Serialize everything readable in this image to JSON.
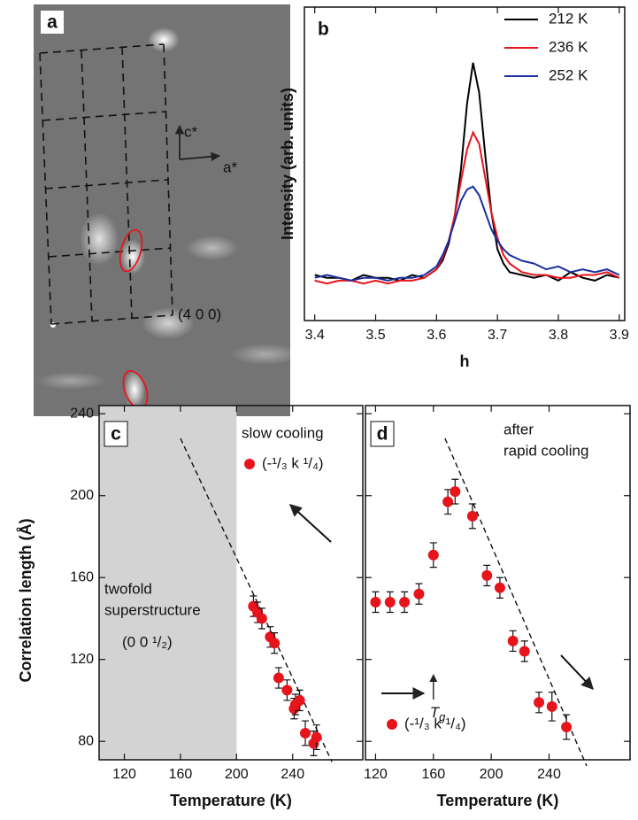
{
  "panel_a": {
    "label": "a",
    "c_axis": "c*",
    "a_axis": "a*",
    "reflection": "(4 0 0)"
  },
  "chart_data": [
    {
      "type": "line",
      "label": "b",
      "xlabel": "h",
      "ylabel": "Intensity (arb. units)",
      "x": [
        3.4,
        3.42,
        3.44,
        3.46,
        3.48,
        3.5,
        3.52,
        3.54,
        3.56,
        3.58,
        3.6,
        3.61,
        3.62,
        3.63,
        3.64,
        3.65,
        3.66,
        3.67,
        3.68,
        3.69,
        3.7,
        3.71,
        3.72,
        3.74,
        3.76,
        3.78,
        3.8,
        3.82,
        3.84,
        3.86,
        3.88,
        3.9
      ],
      "xlim": [
        3.383,
        3.909
      ],
      "xticks": [
        3.4,
        3.5,
        3.6,
        3.7,
        3.8,
        3.9
      ],
      "ylim": [
        0,
        11
      ],
      "legend": "top-right",
      "series": [
        {
          "name": "212 K",
          "color": "#000000",
          "values": [
            1.6,
            1.5,
            1.5,
            1.4,
            1.6,
            1.5,
            1.5,
            1.4,
            1.6,
            1.5,
            1.8,
            2.1,
            2.7,
            3.7,
            5.3,
            7.6,
            9.05,
            8.0,
            5.8,
            3.8,
            2.5,
            2.0,
            1.7,
            1.6,
            1.5,
            1.6,
            1.4,
            1.7,
            1.5,
            1.4,
            1.6,
            1.5
          ]
        },
        {
          "name": "236 K",
          "color": "#e8141c",
          "values": [
            1.4,
            1.3,
            1.4,
            1.4,
            1.3,
            1.4,
            1.3,
            1.4,
            1.4,
            1.5,
            1.8,
            2.2,
            2.8,
            3.7,
            4.9,
            6.0,
            6.6,
            6.2,
            5.0,
            3.8,
            2.9,
            2.3,
            2.0,
            1.7,
            1.6,
            1.6,
            1.5,
            1.5,
            1.6,
            1.6,
            1.7,
            1.5
          ]
        },
        {
          "name": "252 K",
          "color": "#1a2fa0",
          "values": [
            1.5,
            1.6,
            1.5,
            1.4,
            1.5,
            1.5,
            1.4,
            1.5,
            1.5,
            1.6,
            1.9,
            2.3,
            2.8,
            3.5,
            4.2,
            4.6,
            4.7,
            4.4,
            3.8,
            3.2,
            2.8,
            2.5,
            2.3,
            2.1,
            2.0,
            1.8,
            1.9,
            1.7,
            1.8,
            1.7,
            1.8,
            1.6
          ]
        }
      ]
    },
    {
      "type": "scatter",
      "label": "c",
      "title": "slow cooling",
      "xlabel": "Temperature (K)",
      "ylabel": "Correlation length (Å)",
      "xlim": [
        102,
        290
      ],
      "xticks": [
        120,
        160,
        200,
        240
      ],
      "ylim": [
        71,
        244
      ],
      "yticks": [
        80,
        120,
        160,
        200,
        240
      ],
      "shade_below_x": 200,
      "shade_color": "#d3d3d3",
      "annotation_lines": [
        "twofold",
        "superstructure"
      ],
      "annotation_index": "(0 0 ¹/₂)",
      "guide_line": {
        "x": [
          160,
          268
        ],
        "y": [
          228,
          70
        ]
      },
      "x": [
        212,
        215,
        218,
        224,
        227,
        230,
        236,
        241,
        242,
        245,
        249,
        255,
        257
      ],
      "series": [
        {
          "name": "(-¹/₃ k ¹/₄)",
          "color": "#e8141c",
          "values": [
            146,
            143,
            140,
            131,
            128,
            111,
            105,
            96,
            98,
            100,
            84,
            79,
            82
          ],
          "errors": [
            5,
            5,
            5,
            5,
            5,
            5,
            5,
            5,
            5,
            5,
            6,
            6,
            6
          ]
        }
      ]
    },
    {
      "type": "scatter",
      "label": "d",
      "title_lines": [
        "after",
        "rapid cooling"
      ],
      "xlabel": "Temperature (K)",
      "xlim": [
        113,
        296
      ],
      "xticks": [
        120,
        160,
        200,
        240
      ],
      "transition_x": 160,
      "transition": {
        "symbol": "T",
        "subscript": "g"
      },
      "guide_line": {
        "x": [
          168,
          266
        ],
        "y": [
          228,
          68
        ]
      },
      "x": [
        120,
        130,
        140,
        150,
        160,
        170,
        175,
        187,
        197,
        206,
        215,
        223,
        233,
        242,
        252
      ],
      "series": [
        {
          "name": "(-¹/₃ k ¹/₄)",
          "color": "#e8141c",
          "values": [
            148,
            148,
            148,
            152,
            171,
            197,
            202,
            190,
            161,
            155,
            129,
            124,
            99,
            97,
            87
          ],
          "errors": [
            5,
            5,
            5,
            5,
            6,
            6,
            6,
            6,
            5,
            5,
            5,
            5,
            5,
            7,
            6
          ]
        }
      ]
    }
  ]
}
